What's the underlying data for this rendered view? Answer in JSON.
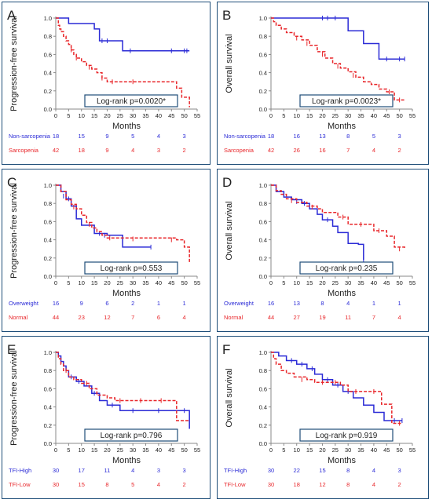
{
  "colors": {
    "frame": "#1f4e79",
    "blue": "#2b2bd6",
    "red": "#e8262a",
    "text": "#222222"
  },
  "common": {
    "xlabel": "Months",
    "x_ticks": [
      0,
      5,
      10,
      15,
      20,
      25,
      30,
      35,
      40,
      45,
      50,
      55
    ],
    "y_ticks": [
      "0.0",
      "0.2",
      "0.4",
      "0.6",
      "0.8",
      "1.0"
    ]
  },
  "chart_data": [
    {
      "panel": "A",
      "type": "line",
      "ylabel": "Progression-free survival",
      "xlim": [
        0,
        55
      ],
      "ylim": [
        0,
        1
      ],
      "logrank": "Log-rank p=0.0020*",
      "series": [
        {
          "name": "Non-sarcopenia",
          "color": "blue",
          "style": "solid",
          "x": [
            0,
            5,
            5,
            15,
            15,
            17,
            17,
            26,
            26,
            52
          ],
          "y": [
            1,
            1,
            0.94,
            0.94,
            0.88,
            0.88,
            0.75,
            0.75,
            0.64,
            0.64
          ],
          "censors": [
            [
              18,
              0.75
            ],
            [
              20,
              0.75
            ],
            [
              29,
              0.64
            ],
            [
              45,
              0.64
            ],
            [
              50,
              0.64
            ],
            [
              51,
              0.64
            ]
          ]
        },
        {
          "name": "Sarcopenia",
          "color": "red",
          "style": "dashed",
          "x": [
            0,
            1,
            1.5,
            2,
            3,
            4,
            5,
            6,
            7,
            8,
            10,
            12,
            14,
            16,
            18,
            20,
            47,
            47,
            49,
            49,
            52,
            52
          ],
          "y": [
            1,
            0.92,
            0.88,
            0.85,
            0.8,
            0.75,
            0.71,
            0.65,
            0.6,
            0.56,
            0.52,
            0.48,
            0.44,
            0.4,
            0.34,
            0.3,
            0.3,
            0.23,
            0.23,
            0.13,
            0.13,
            0.02
          ],
          "censors": [
            [
              6,
              0.65
            ],
            [
              8,
              0.56
            ],
            [
              13,
              0.46
            ],
            [
              18,
              0.34
            ],
            [
              22,
              0.3
            ],
            [
              30,
              0.3
            ]
          ]
        }
      ],
      "risk_rows": [
        {
          "label": "Non-sarcopenia",
          "color": "blue",
          "values": [
            "18",
            "15",
            "9",
            "5",
            "4",
            "3"
          ]
        },
        {
          "label": "Sarcopenia",
          "color": "red",
          "values": [
            "42",
            "18",
            "9",
            "4",
            "3",
            "2"
          ]
        }
      ]
    },
    {
      "panel": "B",
      "type": "line",
      "ylabel": "Overall survival",
      "xlim": [
        0,
        55
      ],
      "ylim": [
        0,
        1
      ],
      "logrank": "Log-rank p=0.0023*",
      "series": [
        {
          "name": "Non-sarcopenia",
          "color": "blue",
          "style": "solid",
          "x": [
            0,
            30,
            30,
            36,
            36,
            42,
            42,
            52
          ],
          "y": [
            1,
            1,
            0.86,
            0.86,
            0.72,
            0.72,
            0.55,
            0.55
          ],
          "censors": [
            [
              20,
              1
            ],
            [
              22,
              1
            ],
            [
              25,
              1
            ],
            [
              45,
              0.55
            ],
            [
              50,
              0.55
            ],
            [
              52,
              0.55
            ]
          ]
        },
        {
          "name": "Sarcopenia",
          "color": "red",
          "style": "dashed",
          "x": [
            0,
            1,
            2,
            4,
            6,
            9,
            12,
            15,
            18,
            21,
            24,
            27,
            30,
            33,
            36,
            39,
            42,
            45,
            48,
            52
          ],
          "y": [
            1,
            0.96,
            0.92,
            0.88,
            0.84,
            0.8,
            0.76,
            0.7,
            0.63,
            0.56,
            0.5,
            0.45,
            0.41,
            0.35,
            0.3,
            0.27,
            0.22,
            0.19,
            0.1,
            0.1
          ],
          "censors": [
            [
              10,
              0.78
            ],
            [
              14,
              0.72
            ],
            [
              20,
              0.6
            ],
            [
              26,
              0.47
            ],
            [
              32,
              0.37
            ],
            [
              46,
              0.19
            ],
            [
              50,
              0.1
            ]
          ]
        }
      ],
      "risk_rows": [
        {
          "label": "Non-sarcopenia",
          "color": "blue",
          "values": [
            "18",
            "16",
            "13",
            "8",
            "5",
            "3"
          ]
        },
        {
          "label": "Sarcopenia",
          "color": "red",
          "values": [
            "42",
            "26",
            "16",
            "7",
            "4",
            "2"
          ]
        }
      ]
    },
    {
      "panel": "C",
      "type": "line",
      "ylabel": "Progression-free survival",
      "xlim": [
        0,
        55
      ],
      "ylim": [
        0,
        1
      ],
      "logrank": "Log-rank p=0.553",
      "series": [
        {
          "name": "Overweight",
          "color": "blue",
          "style": "solid",
          "x": [
            0,
            2,
            4,
            6,
            8,
            10,
            15,
            20,
            25,
            26,
            37
          ],
          "y": [
            1,
            0.93,
            0.85,
            0.77,
            0.63,
            0.56,
            0.47,
            0.45,
            0.45,
            0.32,
            0.32
          ],
          "censors": [
            [
              3,
              0.88
            ],
            [
              5,
              0.85
            ],
            [
              17,
              0.47
            ],
            [
              19,
              0.45
            ],
            [
              37,
              0.32
            ]
          ]
        },
        {
          "name": "Normal",
          "color": "red",
          "style": "dashed",
          "x": [
            0,
            2,
            4,
            6,
            8,
            10,
            12,
            14,
            16,
            18,
            20,
            47,
            50,
            52
          ],
          "y": [
            1,
            0.93,
            0.84,
            0.79,
            0.74,
            0.67,
            0.59,
            0.53,
            0.49,
            0.45,
            0.42,
            0.4,
            0.32,
            0.15
          ],
          "censors": [
            [
              7,
              0.76
            ],
            [
              13,
              0.57
            ],
            [
              21,
              0.42
            ],
            [
              30,
              0.41
            ],
            [
              45,
              0.4
            ]
          ]
        }
      ],
      "risk_rows": [
        {
          "label": "Overweight",
          "color": "blue",
          "values": [
            "16",
            "9",
            "6",
            "2",
            "1",
            "1"
          ]
        },
        {
          "label": "Normal",
          "color": "red",
          "values": [
            "44",
            "23",
            "12",
            "7",
            "6",
            "4"
          ]
        }
      ]
    },
    {
      "panel": "D",
      "type": "line",
      "ylabel": "Overall survival",
      "xlim": [
        0,
        55
      ],
      "ylim": [
        0,
        1
      ],
      "logrank": "Log-rank p=0.235",
      "series": [
        {
          "name": "Overweight",
          "color": "blue",
          "style": "solid",
          "x": [
            0,
            2,
            5,
            8,
            12,
            15,
            18,
            20,
            24,
            26,
            30,
            34,
            36
          ],
          "y": [
            1,
            0.93,
            0.87,
            0.84,
            0.8,
            0.74,
            0.68,
            0.62,
            0.55,
            0.48,
            0.36,
            0.35,
            0.18
          ],
          "censors": [
            [
              10,
              0.82
            ],
            [
              13,
              0.8
            ],
            [
              22,
              0.62
            ],
            [
              36,
              0.18
            ]
          ]
        },
        {
          "name": "Normal",
          "color": "red",
          "style": "dashed",
          "x": [
            0,
            2,
            4,
            6,
            10,
            14,
            18,
            20,
            26,
            30,
            40,
            45,
            48,
            52
          ],
          "y": [
            1,
            0.94,
            0.9,
            0.85,
            0.81,
            0.77,
            0.74,
            0.7,
            0.65,
            0.57,
            0.5,
            0.44,
            0.32,
            0.3
          ],
          "censors": [
            [
              8,
              0.83
            ],
            [
              16,
              0.76
            ],
            [
              28,
              0.65
            ],
            [
              35,
              0.57
            ],
            [
              42,
              0.5
            ],
            [
              50,
              0.3
            ]
          ]
        }
      ],
      "risk_rows": [
        {
          "label": "Overweight",
          "color": "blue",
          "values": [
            "16",
            "13",
            "8",
            "4",
            "1",
            "1"
          ]
        },
        {
          "label": "Normal",
          "color": "red",
          "values": [
            "44",
            "27",
            "19",
            "11",
            "7",
            "4"
          ]
        }
      ]
    },
    {
      "panel": "E",
      "type": "line",
      "ylabel": "Progression-free survival",
      "xlim": [
        0,
        55
      ],
      "ylim": [
        0,
        1
      ],
      "logrank": "Log-rank p=0.796",
      "series": [
        {
          "name": "TFI-High",
          "color": "blue",
          "style": "solid",
          "x": [
            0,
            1,
            2,
            3,
            4,
            5,
            8,
            11,
            14,
            17,
            20,
            25,
            51,
            52
          ],
          "y": [
            1,
            0.96,
            0.9,
            0.85,
            0.8,
            0.73,
            0.68,
            0.63,
            0.55,
            0.47,
            0.42,
            0.36,
            0.36,
            0.16
          ],
          "censors": [
            [
              6,
              0.73
            ],
            [
              9,
              0.68
            ],
            [
              15,
              0.55
            ],
            [
              22,
              0.42
            ],
            [
              30,
              0.36
            ],
            [
              40,
              0.36
            ],
            [
              50,
              0.36
            ]
          ]
        },
        {
          "name": "TFI-Low",
          "color": "red",
          "style": "dashed",
          "x": [
            0,
            1,
            2,
            3,
            5,
            7,
            10,
            13,
            16,
            20,
            23,
            47,
            47,
            52
          ],
          "y": [
            1,
            0.93,
            0.87,
            0.8,
            0.73,
            0.7,
            0.66,
            0.6,
            0.53,
            0.5,
            0.47,
            0.47,
            0.25,
            0.25
          ],
          "censors": [
            [
              4,
              0.8
            ],
            [
              12,
              0.66
            ],
            [
              25,
              0.47
            ],
            [
              33,
              0.47
            ],
            [
              41,
              0.47
            ]
          ]
        }
      ],
      "risk_rows": [
        {
          "label": "TFI-High",
          "color": "blue",
          "values": [
            "30",
            "17",
            "11",
            "4",
            "3",
            "3"
          ]
        },
        {
          "label": "TFI-Low",
          "color": "red",
          "values": [
            "30",
            "15",
            "8",
            "5",
            "4",
            "2"
          ]
        }
      ]
    },
    {
      "panel": "F",
      "type": "line",
      "ylabel": "Overall survival",
      "xlim": [
        0,
        55
      ],
      "ylim": [
        0,
        1
      ],
      "logrank": "Log-rank p=0.919",
      "series": [
        {
          "name": "TFI-High",
          "color": "blue",
          "style": "solid",
          "x": [
            0,
            3,
            6,
            10,
            14,
            17,
            20,
            24,
            28,
            32,
            36,
            40,
            44,
            51
          ],
          "y": [
            1,
            0.96,
            0.91,
            0.87,
            0.82,
            0.76,
            0.7,
            0.64,
            0.57,
            0.5,
            0.42,
            0.34,
            0.25,
            0.25
          ],
          "censors": [
            [
              8,
              0.91
            ],
            [
              12,
              0.87
            ],
            [
              16,
              0.82
            ],
            [
              22,
              0.7
            ],
            [
              26,
              0.64
            ],
            [
              30,
              0.57
            ],
            [
              48,
              0.25
            ],
            [
              51,
              0.25
            ]
          ]
        },
        {
          "name": "TFI-Low",
          "color": "red",
          "style": "dashed",
          "x": [
            0,
            1,
            2,
            4,
            6,
            9,
            14,
            17,
            22,
            27,
            30,
            35,
            43,
            47,
            51
          ],
          "y": [
            1,
            0.93,
            0.87,
            0.8,
            0.77,
            0.73,
            0.7,
            0.67,
            0.67,
            0.64,
            0.57,
            0.57,
            0.43,
            0.22,
            0.22
          ],
          "censors": [
            [
              12,
              0.7
            ],
            [
              20,
              0.67
            ],
            [
              25,
              0.67
            ],
            [
              33,
              0.57
            ],
            [
              40,
              0.57
            ],
            [
              50,
              0.22
            ]
          ]
        }
      ],
      "risk_rows": [
        {
          "label": "TFI-High",
          "color": "blue",
          "values": [
            "30",
            "22",
            "15",
            "8",
            "4",
            "3"
          ]
        },
        {
          "label": "TFI-Low",
          "color": "red",
          "values": [
            "30",
            "18",
            "12",
            "8",
            "4",
            "2"
          ]
        }
      ]
    }
  ]
}
